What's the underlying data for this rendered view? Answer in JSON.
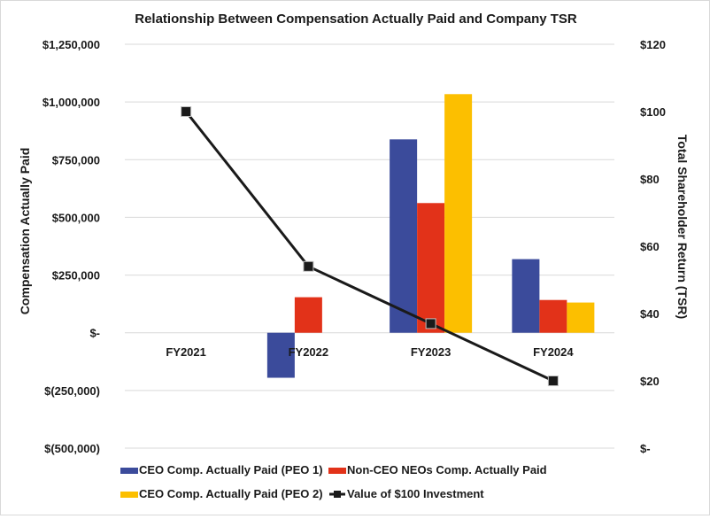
{
  "chart_data": {
    "type": "bar",
    "title": "Relationship Between Compensation Actually Paid and Company TSR",
    "categories": [
      "FY2021",
      "FY2022",
      "FY2023",
      "FY2024"
    ],
    "ylabel": "Compensation Actually Paid",
    "y2label": "Total Shareholder Return (TSR)",
    "ylim": [
      -500000,
      1250000
    ],
    "y2lim": [
      0,
      120
    ],
    "yticks": [
      1250000,
      1000000,
      750000,
      500000,
      250000,
      0,
      -250000,
      -500000
    ],
    "ytick_labels": [
      "$1,250,000",
      "$1,000,000",
      "$750,000",
      "$500,000",
      "$250,000",
      "$-",
      "$(250,000)",
      "$(500,000)"
    ],
    "y2ticks": [
      120,
      100,
      80,
      60,
      40,
      20,
      0
    ],
    "y2tick_labels": [
      "$120",
      "$100",
      "$80",
      "$60",
      "$40",
      "$20",
      "$-"
    ],
    "grid": true,
    "legend_position": "bottom",
    "series": [
      {
        "name": "CEO Comp. Actually Paid (PEO 1)",
        "type": "bar",
        "axis": "left",
        "color": "#3b4b9b",
        "values": [
          null,
          -195000,
          838000,
          319000
        ]
      },
      {
        "name": "Non-CEO NEOs Comp. Actually Paid",
        "type": "bar",
        "axis": "left",
        "color": "#e23219",
        "values": [
          null,
          154000,
          562000,
          142000
        ]
      },
      {
        "name": "CEO Comp. Actually Paid (PEO 2)",
        "type": "bar",
        "axis": "left",
        "color": "#fcbf00",
        "values": [
          null,
          null,
          1034000,
          131000
        ]
      },
      {
        "name": "Value of $100 Investment",
        "type": "line",
        "axis": "right",
        "color": "#1a1a1a",
        "values": [
          100,
          54,
          37,
          20
        ]
      }
    ],
    "legend_order": [
      0,
      1,
      2,
      3
    ]
  }
}
